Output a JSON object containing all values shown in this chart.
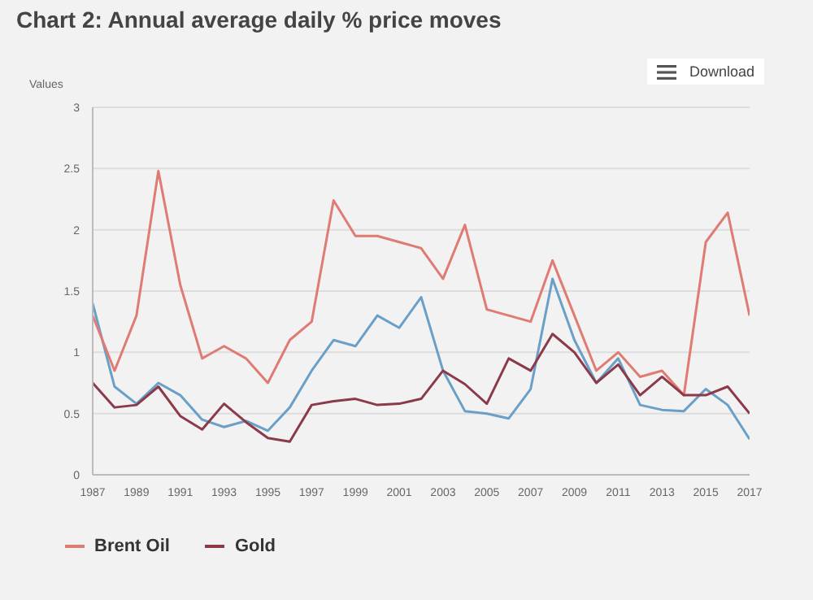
{
  "chart_data": {
    "type": "line",
    "title": "Chart 2: Annual average daily % price moves",
    "ylabel": "Values",
    "annotations": [
      "Download"
    ],
    "x": [
      1987,
      1988,
      1989,
      1990,
      1991,
      1992,
      1993,
      1994,
      1995,
      1996,
      1997,
      1998,
      1999,
      2000,
      2001,
      2002,
      2003,
      2004,
      2005,
      2006,
      2007,
      2008,
      2009,
      2010,
      2011,
      2012,
      2013,
      2014,
      2015,
      2016,
      2017
    ],
    "series": [
      {
        "color": "#6a9fc8",
        "values": [
          1.4,
          0.72,
          0.58,
          0.75,
          0.65,
          0.45,
          0.39,
          0.44,
          0.36,
          0.55,
          0.85,
          1.1,
          1.05,
          1.3,
          1.2,
          1.45,
          0.85,
          0.52,
          0.5,
          0.46,
          0.7,
          1.6,
          1.1,
          0.75,
          0.95,
          0.57,
          0.53,
          0.52,
          0.7,
          0.57,
          0.29
        ]
      },
      {
        "name": "Brent Oil",
        "color": "#e07b74",
        "values": [
          1.3,
          0.85,
          1.3,
          2.48,
          1.55,
          0.95,
          1.05,
          0.95,
          0.75,
          1.1,
          1.25,
          2.24,
          1.95,
          1.95,
          1.9,
          1.85,
          1.6,
          2.04,
          1.35,
          1.3,
          1.25,
          1.75,
          1.3,
          0.85,
          1.0,
          0.8,
          0.85,
          0.65,
          1.9,
          2.14,
          1.3
        ]
      },
      {
        "name": "Gold",
        "color": "#8b3a4a",
        "values": [
          0.75,
          0.55,
          0.57,
          0.72,
          0.48,
          0.37,
          0.58,
          0.43,
          0.3,
          0.27,
          0.57,
          0.6,
          0.62,
          0.57,
          0.58,
          0.62,
          0.85,
          0.74,
          0.58,
          0.95,
          0.85,
          1.15,
          1.0,
          0.75,
          0.9,
          0.65,
          0.8,
          0.65,
          0.65,
          0.72,
          0.5
        ]
      }
    ],
    "xlim": [
      1987,
      2017
    ],
    "xticks": [
      1987,
      1989,
      1991,
      1993,
      1995,
      1997,
      1999,
      2001,
      2003,
      2005,
      2007,
      2009,
      2011,
      2013,
      2015,
      2017
    ],
    "ylim": [
      0,
      3
    ],
    "yticks": [
      0,
      0.5,
      1,
      1.5,
      2,
      2.5,
      3
    ],
    "grid": "y",
    "legend": "bottom left",
    "marker": "none",
    "line_style": "solid"
  }
}
